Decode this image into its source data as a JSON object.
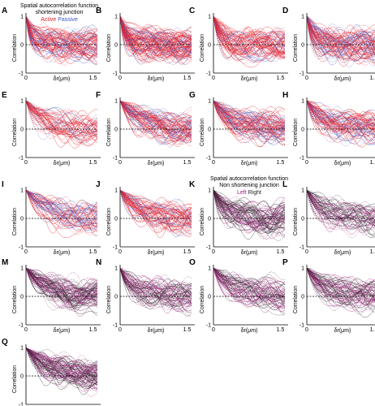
{
  "headers": [
    {
      "id": "shortening",
      "title": "Spatial autocorrelation function",
      "subtitle": "shortening junction",
      "legend": [
        {
          "label": "Active",
          "color": "#e8202a"
        },
        {
          "label": "Passive",
          "color": "#3a57c8"
        }
      ]
    },
    {
      "id": "non-shortening",
      "title": "Spatial autocorrelation function",
      "subtitle": "Non shortening junction",
      "legend": [
        {
          "label": "Left",
          "color": "#a0227c"
        },
        {
          "label": "Right",
          "color": "#222222"
        }
      ]
    }
  ],
  "chart_data": [
    {
      "panel": "A",
      "type": "line",
      "xlabel": "δr(μm)",
      "ylabel": "Correlation",
      "xticks": [
        "0",
        "1.5"
      ],
      "yticks": [
        "-1",
        "0",
        "1"
      ],
      "xlim": [
        0,
        1.6
      ],
      "ylim": [
        -1,
        1
      ],
      "reference_line": 0,
      "series": [
        {
          "name": "Active",
          "color": "#e8202a",
          "n_curves": 55
        },
        {
          "name": "Passive",
          "color": "#3a57c8",
          "n_curves": 22
        }
      ],
      "decay_length": 0.12
    },
    {
      "panel": "B",
      "type": "line",
      "xlabel": "δr(μm)",
      "ylabel": "Correlation",
      "xticks": [
        "0",
        "1.5"
      ],
      "yticks": [
        "-1",
        "0",
        "1"
      ],
      "xlim": [
        0,
        1.6
      ],
      "ylim": [
        -1,
        1
      ],
      "reference_line": 0,
      "series": [
        {
          "name": "Active",
          "color": "#e8202a",
          "n_curves": 80
        },
        {
          "name": "Passive",
          "color": "#3a57c8",
          "n_curves": 25
        }
      ],
      "decay_length": 0.14
    },
    {
      "panel": "C",
      "type": "line",
      "xlabel": "δr(μm)",
      "ylabel": "Correlation",
      "xticks": [
        "0",
        "1.5"
      ],
      "yticks": [
        "-1",
        "0",
        "1"
      ],
      "xlim": [
        0,
        1.6
      ],
      "ylim": [
        -1,
        1
      ],
      "reference_line": 0,
      "series": [
        {
          "name": "Active",
          "color": "#e8202a",
          "n_curves": 60
        },
        {
          "name": "Passive",
          "color": "#3a57c8",
          "n_curves": 15
        }
      ],
      "decay_length": 0.2
    },
    {
      "panel": "D",
      "type": "line",
      "xlabel": "δr(μm)",
      "ylabel": "Correlation",
      "xticks": [
        "0",
        "1.5"
      ],
      "yticks": [
        "-1",
        "0",
        "1"
      ],
      "xlim": [
        0,
        1.6
      ],
      "ylim": [
        -1,
        1
      ],
      "reference_line": 0,
      "series": [
        {
          "name": "Active",
          "color": "#e8202a",
          "n_curves": 60
        },
        {
          "name": "Passive",
          "color": "#3a57c8",
          "n_curves": 30
        }
      ],
      "decay_length": 0.18
    },
    {
      "panel": "E",
      "type": "line",
      "xlabel": "δr(μm)",
      "ylabel": "Correlation",
      "xticks": [
        "0",
        "1.5"
      ],
      "yticks": [
        "-1",
        "0",
        "1"
      ],
      "xlim": [
        0,
        1.6
      ],
      "ylim": [
        -1,
        1
      ],
      "reference_line": 0,
      "series": [
        {
          "name": "Active",
          "color": "#e8202a",
          "n_curves": 45
        },
        {
          "name": "Passive",
          "color": "#3a57c8",
          "n_curves": 10
        }
      ],
      "decay_length": 0.35
    },
    {
      "panel": "F",
      "type": "line",
      "xlabel": "δr(μm)",
      "ylabel": "Correlation",
      "xticks": [
        "0",
        "1.5"
      ],
      "yticks": [
        "-1",
        "0",
        "1"
      ],
      "xlim": [
        0,
        1.6
      ],
      "ylim": [
        -1,
        1
      ],
      "reference_line": 0,
      "series": [
        {
          "name": "Active",
          "color": "#e8202a",
          "n_curves": 55
        },
        {
          "name": "Passive",
          "color": "#3a57c8",
          "n_curves": 25
        }
      ],
      "decay_length": 0.45
    },
    {
      "panel": "G",
      "type": "line",
      "xlabel": "δr(μm)",
      "ylabel": "Correlation",
      "xticks": [
        "0",
        "1.5"
      ],
      "yticks": [
        "-1",
        "0",
        "1"
      ],
      "xlim": [
        0,
        1.6
      ],
      "ylim": [
        -1,
        1
      ],
      "reference_line": 0,
      "series": [
        {
          "name": "Active",
          "color": "#e8202a",
          "n_curves": 55
        },
        {
          "name": "Passive",
          "color": "#3a57c8",
          "n_curves": 30
        }
      ],
      "decay_length": 0.4
    },
    {
      "panel": "H",
      "type": "line",
      "xlabel": "δr(μm)",
      "ylabel": "Correlation",
      "xticks": [
        "0",
        "1.5"
      ],
      "yticks": [
        "-1",
        "0",
        "1"
      ],
      "xlim": [
        0,
        1.6
      ],
      "ylim": [
        -1,
        1
      ],
      "reference_line": 0,
      "series": [
        {
          "name": "Active",
          "color": "#e8202a",
          "n_curves": 50
        },
        {
          "name": "Passive",
          "color": "#3a57c8",
          "n_curves": 25
        }
      ],
      "decay_length": 0.35
    },
    {
      "panel": "I",
      "type": "line",
      "xlabel": "δr(μm)",
      "ylabel": "Correlation",
      "xticks": [
        "0",
        "1.5"
      ],
      "yticks": [
        "-1",
        "0",
        "1"
      ],
      "xlim": [
        0,
        1.6
      ],
      "ylim": [
        -1,
        1
      ],
      "reference_line": 0,
      "series": [
        {
          "name": "Active",
          "color": "#e8202a",
          "n_curves": 35
        },
        {
          "name": "Passive",
          "color": "#3a57c8",
          "n_curves": 25
        }
      ],
      "decay_length": 0.5
    },
    {
      "panel": "J",
      "type": "line",
      "xlabel": "δr(μm)",
      "ylabel": "Correlation",
      "xticks": [
        "0",
        "1.5"
      ],
      "yticks": [
        "-1",
        "0",
        "1"
      ],
      "xlim": [
        0,
        1.6
      ],
      "ylim": [
        -1,
        1
      ],
      "reference_line": 0,
      "series": [
        {
          "name": "Active",
          "color": "#e8202a",
          "n_curves": 55
        },
        {
          "name": "Passive",
          "color": "#3a57c8",
          "n_curves": 15
        }
      ],
      "decay_length": 0.4
    },
    {
      "panel": "K",
      "type": "line",
      "xlabel": "δr(μm)",
      "ylabel": "Correlation",
      "xticks": [
        "0",
        "1.5"
      ],
      "yticks": [
        "-1",
        "0",
        "1"
      ],
      "xlim": [
        0,
        1.6
      ],
      "ylim": [
        -1,
        1
      ],
      "reference_line": 0,
      "series": [
        {
          "name": "Left",
          "color": "#a0227c",
          "n_curves": 35
        },
        {
          "name": "Right",
          "color": "#222222",
          "n_curves": 35
        }
      ],
      "decay_length": 0.25
    },
    {
      "panel": "L",
      "type": "line",
      "xlabel": "δr(μm)",
      "ylabel": "Correlation",
      "xticks": [
        "0",
        "1.5"
      ],
      "yticks": [
        "-1",
        "0",
        "1"
      ],
      "xlim": [
        0,
        1.6
      ],
      "ylim": [
        -1,
        1
      ],
      "reference_line": 0,
      "series": [
        {
          "name": "Left",
          "color": "#a0227c",
          "n_curves": 30
        },
        {
          "name": "Right",
          "color": "#222222",
          "n_curves": 30
        }
      ],
      "decay_length": 0.3
    },
    {
      "panel": "M",
      "type": "line",
      "xlabel": "δr(μm)",
      "ylabel": "Correlation",
      "xticks": [
        "0",
        "1.5"
      ],
      "yticks": [
        "-1",
        "0",
        "1"
      ],
      "xlim": [
        0,
        1.6
      ],
      "ylim": [
        -1,
        1
      ],
      "reference_line": 0,
      "series": [
        {
          "name": "Left",
          "color": "#a0227c",
          "n_curves": 40
        },
        {
          "name": "Right",
          "color": "#222222",
          "n_curves": 40
        }
      ],
      "decay_length": 0.45
    },
    {
      "panel": "N",
      "type": "line",
      "xlabel": "δr(μm)",
      "ylabel": "Correlation",
      "xticks": [
        "0",
        "1.5"
      ],
      "yticks": [
        "-1",
        "0",
        "1"
      ],
      "xlim": [
        0,
        1.6
      ],
      "ylim": [
        -1,
        1
      ],
      "reference_line": 0,
      "series": [
        {
          "name": "Left",
          "color": "#a0227c",
          "n_curves": 35
        },
        {
          "name": "Right",
          "color": "#222222",
          "n_curves": 30
        }
      ],
      "decay_length": 0.3
    },
    {
      "panel": "O",
      "type": "line",
      "xlabel": "δr(μm)",
      "ylabel": "Correlation",
      "xticks": [
        "0",
        "1.5"
      ],
      "yticks": [
        "-1",
        "0",
        "1"
      ],
      "xlim": [
        0,
        1.6
      ],
      "ylim": [
        -1,
        1
      ],
      "reference_line": 0,
      "series": [
        {
          "name": "Left",
          "color": "#a0227c",
          "n_curves": 35
        },
        {
          "name": "Right",
          "color": "#222222",
          "n_curves": 30
        }
      ],
      "decay_length": 0.4
    },
    {
      "panel": "P",
      "type": "line",
      "xlabel": "δr(μm)",
      "ylabel": "Correlation",
      "xticks": [
        "0",
        "1.5"
      ],
      "yticks": [
        "-1",
        "0",
        "1"
      ],
      "xlim": [
        0,
        1.6
      ],
      "ylim": [
        -1,
        1
      ],
      "reference_line": 0,
      "series": [
        {
          "name": "Left",
          "color": "#a0227c",
          "n_curves": 35
        },
        {
          "name": "Right",
          "color": "#222222",
          "n_curves": 30
        }
      ],
      "decay_length": 0.4
    },
    {
      "panel": "Q",
      "type": "line",
      "xlabel": "δr(μm)",
      "ylabel": "Correlation",
      "xticks": [
        "0",
        "1.5"
      ],
      "yticks": [
        "-1",
        "0",
        "1"
      ],
      "xlim": [
        0,
        1.6
      ],
      "ylim": [
        -1,
        1
      ],
      "reference_line": 0,
      "series": [
        {
          "name": "Left",
          "color": "#a0227c",
          "n_curves": 45
        },
        {
          "name": "Right",
          "color": "#222222",
          "n_curves": 40
        }
      ],
      "decay_length": 0.45
    }
  ]
}
